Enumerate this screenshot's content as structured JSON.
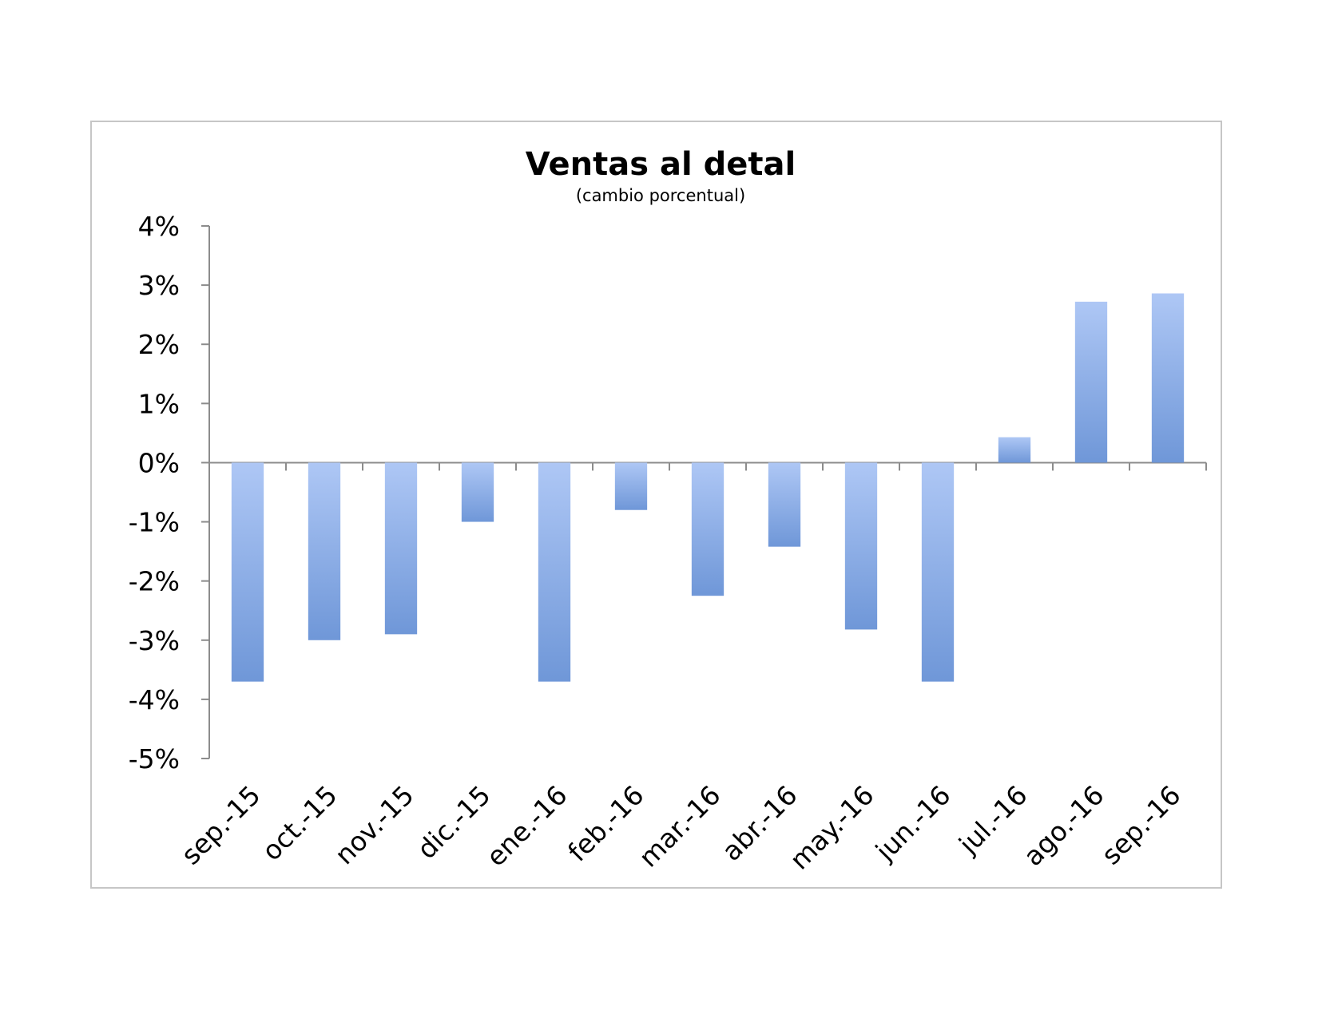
{
  "chart_data": {
    "type": "bar",
    "title": "Ventas al detal",
    "subtitle": "(cambio porcentual)",
    "xlabel": "",
    "ylabel": "",
    "categories": [
      "sep.-15",
      "oct.-15",
      "nov.-15",
      "dic.-15",
      "ene.-16",
      "feb.-16",
      "mar.-16",
      "abr.-16",
      "may.-16",
      "jun.-16",
      "jul.-16",
      "ago.-16",
      "sep.-16"
    ],
    "values": [
      -3.7,
      -3.0,
      -2.9,
      -1.0,
      -3.7,
      -0.8,
      -2.25,
      -1.42,
      -2.82,
      -3.7,
      0.43,
      2.72,
      2.86
    ],
    "ylim": [
      -5,
      4
    ],
    "yticks": [
      4,
      3,
      2,
      1,
      0,
      -1,
      -2,
      -3,
      -4,
      -5
    ],
    "ytick_labels": [
      "4%",
      "3%",
      "2%",
      "1%",
      "0%",
      "-1%",
      "-2%",
      "-3%",
      "-4%",
      "-5%"
    ],
    "grid": false,
    "legend": "none",
    "colors": {
      "bar_light": "#aec7f5",
      "bar_dark": "#6f97d8",
      "axis": "#8c8c8c",
      "border": "#c6c6c6"
    }
  }
}
